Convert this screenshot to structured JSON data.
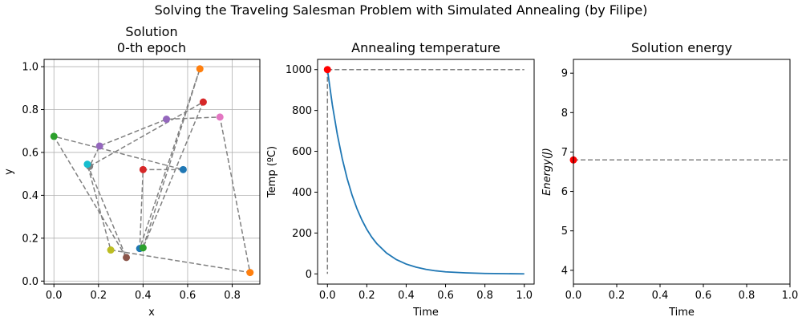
{
  "figure": {
    "suptitle": "Solving the Traveling Salesman Problem with Simulated Annealing (by Filipe)"
  },
  "chart_data": [
    {
      "type": "scatter",
      "title_lines": [
        "Solution",
        "0-th epoch"
      ],
      "xlabel": "x",
      "ylabel": "y",
      "xlim": [
        -0.044,
        0.924
      ],
      "ylim": [
        -0.014,
        1.034
      ],
      "xticks": [
        0.0,
        0.2,
        0.4,
        0.6,
        0.8
      ],
      "xtick_labels": [
        "0.0",
        "0.2",
        "0.4",
        "0.6",
        "0.8"
      ],
      "yticks": [
        0.0,
        0.2,
        0.4,
        0.6,
        0.8,
        1.0
      ],
      "ytick_labels": [
        "0.0",
        "0.2",
        "0.4",
        "0.6",
        "0.8",
        "1.0"
      ],
      "grid": true,
      "route_color": "#808080",
      "cities": [
        {
          "x": 0.58,
          "y": 0.52,
          "color": "#1f77b4"
        },
        {
          "x": 0.655,
          "y": 0.99,
          "color": "#ff7f0e"
        },
        {
          "x": 0.0,
          "y": 0.675,
          "color": "#2ca02c"
        },
        {
          "x": 0.67,
          "y": 0.835,
          "color": "#d62728"
        },
        {
          "x": 0.505,
          "y": 0.755,
          "color": "#9467bd"
        },
        {
          "x": 0.325,
          "y": 0.11,
          "color": "#8c564b"
        },
        {
          "x": 0.745,
          "y": 0.765,
          "color": "#e377c2"
        },
        {
          "x": 0.16,
          "y": 0.535,
          "color": "#7f7f7f"
        },
        {
          "x": 0.255,
          "y": 0.145,
          "color": "#bcbd22"
        },
        {
          "x": 0.15,
          "y": 0.545,
          "color": "#17becf"
        },
        {
          "x": 0.385,
          "y": 0.152,
          "color": "#1f77b4"
        },
        {
          "x": 0.88,
          "y": 0.04,
          "color": "#ff7f0e"
        },
        {
          "x": 0.4,
          "y": 0.155,
          "color": "#2ca02c"
        },
        {
          "x": 0.4,
          "y": 0.52,
          "color": "#d62728"
        },
        {
          "x": 0.205,
          "y": 0.63,
          "color": "#9467bd"
        }
      ],
      "route_order": [
        0,
        13,
        10,
        1,
        12,
        3,
        7,
        14,
        4,
        6,
        11,
        8,
        9,
        5,
        2
      ]
    },
    {
      "type": "line",
      "title": "Annealing temperature",
      "xlabel": "Time",
      "ylabel": "Temp (ºC)",
      "xlim": [
        -0.05,
        1.05
      ],
      "ylim": [
        -50,
        1050
      ],
      "xticks": [
        0.0,
        0.2,
        0.4,
        0.6,
        0.8,
        1.0
      ],
      "xtick_labels": [
        "0.0",
        "0.2",
        "0.4",
        "0.6",
        "0.8",
        "1.0"
      ],
      "yticks": [
        0,
        200,
        400,
        600,
        800,
        1000
      ],
      "ytick_labels": [
        "0",
        "200",
        "400",
        "600",
        "800",
        "1000"
      ],
      "grid": false,
      "series": [
        {
          "color": "#1f77b4",
          "x": [
            0.0,
            0.025,
            0.05,
            0.075,
            0.1,
            0.125,
            0.15,
            0.175,
            0.2,
            0.225,
            0.25,
            0.3,
            0.35,
            0.4,
            0.45,
            0.5,
            0.55,
            0.6,
            0.7,
            0.8,
            0.9,
            1.0
          ],
          "y": [
            1000,
            827,
            684,
            565,
            467,
            386,
            319,
            264,
            218,
            180,
            149,
            102,
            70,
            48,
            33,
            22,
            15,
            10,
            5,
            2,
            1,
            0
          ]
        }
      ],
      "reference_level": 1000,
      "current": {
        "x": 0.0,
        "y": 1000,
        "color": "#ff0000"
      },
      "guide_color": "#808080"
    },
    {
      "type": "line",
      "title": "Solution energy",
      "xlabel": "Time",
      "ylabel": "Energy(J)",
      "xlim": [
        0.0,
        1.0
      ],
      "ylim": [
        3.65,
        9.35
      ],
      "xticks": [
        0.0,
        0.2,
        0.4,
        0.6,
        0.8,
        1.0
      ],
      "xtick_labels": [
        "0.0",
        "0.2",
        "0.4",
        "0.6",
        "0.8",
        "1.0"
      ],
      "yticks": [
        4,
        5,
        6,
        7,
        8,
        9
      ],
      "ytick_labels": [
        "4",
        "5",
        "6",
        "7",
        "8",
        "9"
      ],
      "grid": false,
      "reference_level": 6.8,
      "current": {
        "x": 0.0,
        "y": 6.8,
        "color": "#ff0000"
      },
      "guide_color": "#808080"
    }
  ]
}
